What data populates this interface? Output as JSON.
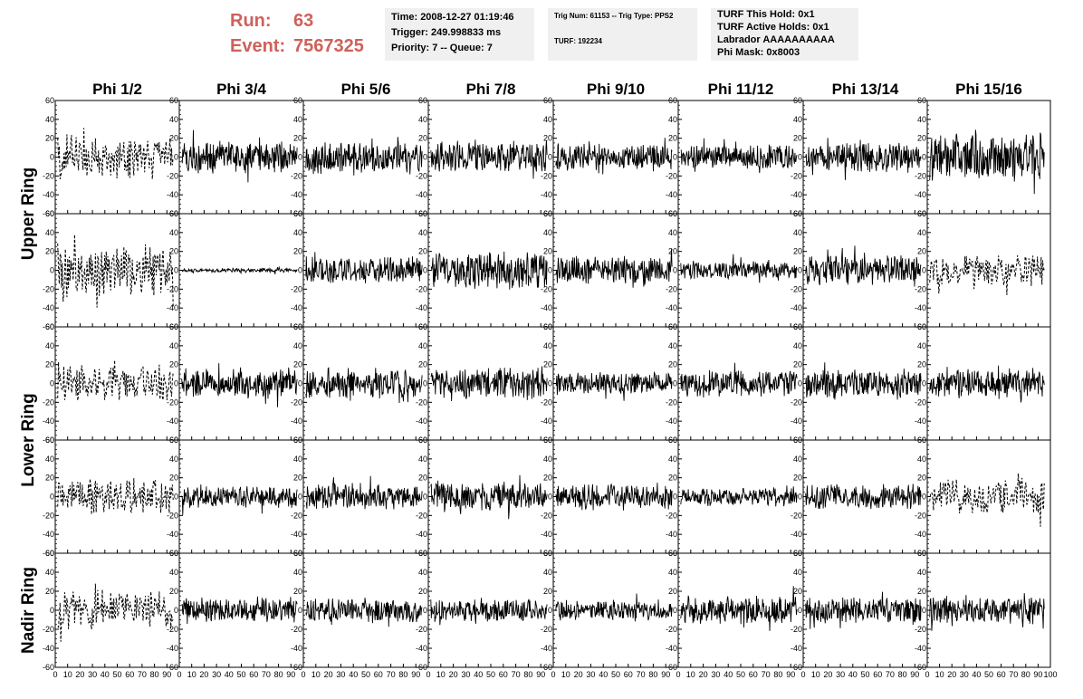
{
  "header": {
    "run_label": "Run:",
    "run_value": "63",
    "event_label": "Event:",
    "event_value": "7567325",
    "panel_time": {
      "time": "Time: 2008-12-27 01:19:46",
      "trigger": "Trigger: 249.998833 ms",
      "priority": "Priority: 7 -- Queue: 7"
    },
    "panel_trig": {
      "trig_line": "Trig Num: 61153 -- Trig Type: PPS2",
      "turf_line": "TURF: 192234"
    },
    "panel_turf": {
      "hold": "TURF This Hold: 0x1",
      "active": "TURF Active Holds: 0x1",
      "labrador": "Labrador AAAAAAAAAA",
      "mask": "Phi Mask: 0x8003"
    }
  },
  "chart_data": {
    "type": "line",
    "title": "",
    "columns": [
      "Phi 1/2",
      "Phi 3/4",
      "Phi 5/6",
      "Phi 7/8",
      "Phi 9/10",
      "Phi 11/12",
      "Phi 13/14",
      "Phi 15/16"
    ],
    "rows": [
      "Upper Ring",
      "Lower Ring",
      "Nadir Ring"
    ],
    "xlim": [
      0,
      100
    ],
    "ylim": [
      -60,
      60
    ],
    "x_ticks": [
      "0",
      "10",
      "20",
      "30",
      "40",
      "50",
      "60",
      "70",
      "80",
      "90",
      "100"
    ],
    "y_ticks": [
      "60",
      "40",
      "20",
      "0",
      "-20",
      "-40",
      "-60"
    ],
    "grid": false,
    "dashed_panels": [
      [
        0,
        0
      ],
      [
        1,
        0
      ],
      [
        1,
        7
      ],
      [
        2,
        0
      ],
      [
        3,
        0
      ],
      [
        3,
        7
      ],
      [
        4,
        0
      ]
    ],
    "panel_amplitude": [
      [
        20,
        14,
        14,
        14,
        12,
        11,
        13,
        20
      ],
      [
        22,
        2,
        12,
        16,
        12,
        8,
        13,
        14
      ],
      [
        16,
        13,
        13,
        14,
        10,
        12,
        13,
        13
      ],
      [
        16,
        10,
        12,
        13,
        12,
        8,
        11,
        16
      ],
      [
        18,
        11,
        11,
        10,
        9,
        12,
        11,
        12
      ]
    ]
  }
}
